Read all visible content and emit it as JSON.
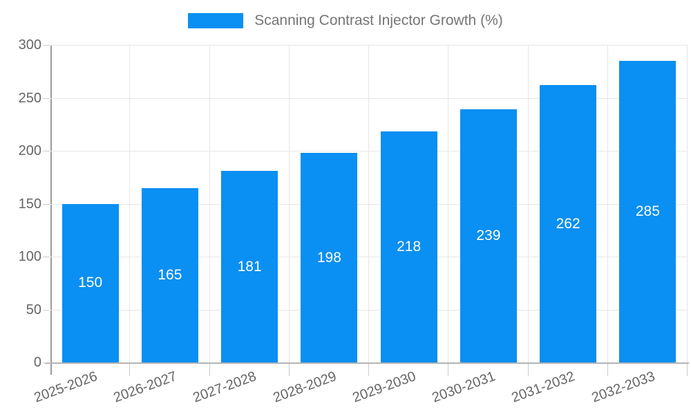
{
  "legend": {
    "label": "Scanning Contrast Injector Growth (%)"
  },
  "chart_data": {
    "type": "bar",
    "title": "Scanning Contrast Injector Growth (%)",
    "categories": [
      "2025-2026",
      "2026-2027",
      "2027-2028",
      "2028-2029",
      "2029-2030",
      "2030-2031",
      "2031-2032",
      "2032-2033"
    ],
    "values": [
      150,
      165,
      181,
      198,
      218,
      239,
      262,
      285
    ],
    "xlabel": "",
    "ylabel": "",
    "ylim": [
      0,
      300
    ],
    "yticks": [
      0,
      50,
      100,
      150,
      200,
      250,
      300
    ],
    "grid": true,
    "legend_position": "top-center",
    "value_labels": "inside-center"
  },
  "colors": {
    "bar": "#0a8ff2",
    "gridline": "#e6e6e6",
    "y_axis_line": "#999999",
    "baseline": "#b3b3b3",
    "tick": "#cccccc",
    "tick_label_text": "#666666",
    "legend_text": "#757575",
    "value_label_text": "#ffffff",
    "background": "#ffffff"
  }
}
